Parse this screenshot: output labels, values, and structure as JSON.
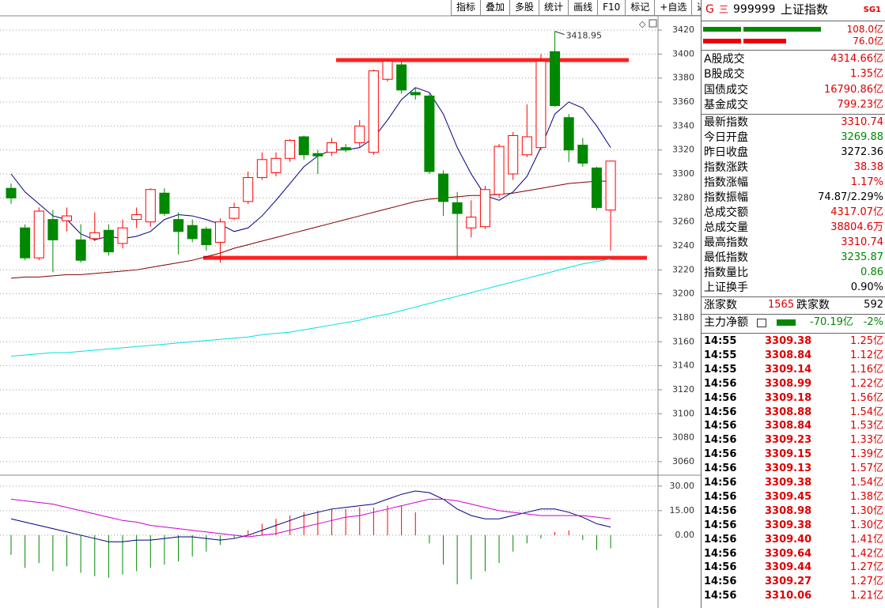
{
  "toolbar": [
    "指标",
    "叠加",
    "多股",
    "统计",
    "画线",
    "F10",
    "标记",
    "+自选",
    "返回"
  ],
  "chart_data": [
    {
      "type": "candlestick",
      "open": [
        3288,
        3255,
        3230,
        3262,
        3261,
        3245,
        3246,
        3253,
        3242,
        3262,
        3260,
        3284,
        3262,
        3257,
        3254,
        3243,
        3263,
        3277,
        3297,
        3301,
        3313,
        3331,
        3317,
        3318,
        3322,
        3326,
        3318,
        3379,
        3391,
        3368,
        3365,
        3300,
        3276,
        3255,
        3256,
        3283,
        3300,
        3316,
        3322,
        3402,
        3347,
        3324,
        3305,
        3269.88
      ],
      "high": [
        3292,
        3258,
        3272,
        3270,
        3272,
        3258,
        3268,
        3258,
        3262,
        3272,
        3288,
        3288,
        3268,
        3262,
        3256,
        3263,
        3276,
        3302,
        3318,
        3318,
        3329,
        3332,
        3320,
        3330,
        3325,
        3345,
        3387,
        3395,
        3394,
        3372,
        3367,
        3303,
        3285,
        3278,
        3290,
        3325,
        3335,
        3358,
        3400,
        3418.95,
        3350,
        3330,
        3306,
        3310.74
      ],
      "low": [
        3275,
        3228,
        3228,
        3218,
        3252,
        3226,
        3244,
        3232,
        3238,
        3255,
        3256,
        3265,
        3233,
        3243,
        3236,
        3226,
        3262,
        3275,
        3295,
        3298,
        3310,
        3312,
        3300,
        3315,
        3318,
        3322,
        3316,
        3377,
        3367,
        3362,
        3300,
        3265,
        3230,
        3247,
        3254,
        3280,
        3295,
        3314,
        3320,
        3356,
        3310,
        3306,
        3270,
        3235.87
      ],
      "close": [
        3280,
        3230,
        3269,
        3245,
        3265,
        3228,
        3251,
        3235,
        3255,
        3266,
        3287,
        3267,
        3252,
        3246,
        3241,
        3260,
        3272,
        3297,
        3312,
        3313,
        3328,
        3316,
        3315,
        3326,
        3320,
        3340,
        3386,
        3394,
        3370,
        3366,
        3302,
        3277,
        3267,
        3264,
        3287,
        3323,
        3332,
        3331,
        3394,
        3357,
        3320,
        3309,
        3272,
        3310.74
      ],
      "up_color": "#ff0000",
      "down_color": "#008800",
      "high_label": "3418.95",
      "lines": [
        {
          "color": "#000080",
          "values": [
            3300,
            3285,
            3275,
            3265,
            3262,
            3250,
            3245,
            3248,
            3246,
            3248,
            3252,
            3262,
            3266,
            3265,
            3262,
            3258,
            3252,
            3255,
            3265,
            3278,
            3292,
            3306,
            3315,
            3320,
            3320,
            3322,
            3330,
            3345,
            3362,
            3372,
            3368,
            3350,
            3322,
            3300,
            3282,
            3278,
            3285,
            3298,
            3322,
            3350,
            3360,
            3355,
            3340,
            3322
          ]
        },
        {
          "color": "#800000",
          "values": [
            3213,
            3214,
            3214,
            3215,
            3216,
            3216,
            3217,
            3218,
            3219,
            3220,
            3222,
            3224,
            3226,
            3228,
            3231,
            3234,
            3238,
            3241,
            3244,
            3247,
            3250,
            3253,
            3256,
            3259,
            3262,
            3265,
            3268,
            3271,
            3274,
            3277,
            3279,
            3280,
            3281,
            3282,
            3282,
            3283,
            3284,
            3286,
            3288,
            3290,
            3292,
            3293,
            3294,
            3294
          ]
        },
        {
          "color": "#00e0e0",
          "values": [
            3148,
            3149,
            3150,
            3151,
            3151,
            3152,
            3153,
            3154,
            3155,
            3156,
            3157,
            3158,
            3159,
            3160,
            3161,
            3162,
            3163,
            3164,
            3166,
            3167,
            3168,
            3170,
            3172,
            3174,
            3176,
            3178,
            3181,
            3183,
            3186,
            3189,
            3192,
            3195,
            3198,
            3201,
            3204,
            3207,
            3210,
            3213,
            3216,
            3219,
            3222,
            3225,
            3227,
            3229
          ]
        }
      ],
      "levels": [
        {
          "value": 3395,
          "color": "#ff2020"
        },
        {
          "value": 3230,
          "color": "#ff2020"
        }
      ],
      "ylim": [
        3049.4,
        3431.9
      ],
      "yticks": [
        3060,
        3080,
        3100,
        3120,
        3140,
        3160,
        3180,
        3200,
        3220,
        3240,
        3260,
        3280,
        3300,
        3320,
        3340,
        3360,
        3380,
        3400,
        3420
      ],
      "grid": true
    },
    {
      "type": "macd",
      "histogram": [
        -12,
        -20,
        -17,
        -22,
        -19,
        -23,
        -25,
        -26,
        -24,
        -22,
        -20,
        -18,
        -16,
        -13,
        -10,
        -6,
        -2,
        3,
        7,
        10,
        12,
        14,
        15,
        16,
        16,
        17,
        17,
        18,
        18,
        14,
        -5,
        -18,
        -30,
        -27,
        -22,
        -17,
        -10,
        -5,
        -2,
        2,
        3,
        -3,
        -9,
        -8
      ],
      "dif": [
        10,
        8,
        6,
        4,
        2,
        0,
        -2,
        -4,
        -4,
        -3,
        -3,
        -2,
        -1,
        -1,
        -2,
        -3,
        -2,
        0,
        3,
        6,
        9,
        12,
        14,
        16,
        17,
        18,
        19,
        22,
        25,
        27,
        26,
        22,
        16,
        12,
        10,
        10,
        12,
        14,
        16,
        16,
        14,
        11,
        7,
        5
      ],
      "dea": [
        22,
        21,
        20,
        19,
        17,
        15,
        13,
        11,
        9,
        8,
        6,
        5,
        4,
        3,
        2,
        1,
        0,
        -1,
        0,
        1,
        3,
        5,
        7,
        9,
        11,
        12,
        14,
        16,
        18,
        20,
        22,
        22,
        21,
        19,
        17,
        15,
        14,
        13,
        12,
        12,
        12,
        12,
        11,
        10
      ],
      "dif_color": "#000080",
      "dea_color": "#cc00cc",
      "up_color": "#ff0000",
      "down_color": "#008800",
      "ylim": [
        -44,
        36.2
      ],
      "yticks": [
        {
          "value": 0,
          "label": "0.00"
        },
        {
          "value": 15,
          "label": "15.00"
        },
        {
          "value": 30,
          "label": "30.00"
        }
      ],
      "grid": true
    }
  ],
  "quote_panel": {
    "header": {
      "mark": "G",
      "menu": "三",
      "code": "999999",
      "name": "上证指数",
      "badge": "SG1"
    },
    "volume_bars": [
      {
        "value": 108.0,
        "label": "108.0亿",
        "color": "#008800"
      },
      {
        "value": 76.0,
        "label": "76.0亿",
        "color": "#ee0000"
      }
    ],
    "turnover": [
      {
        "label": "A股成交",
        "value": "4314.66亿",
        "color": "#dd0000"
      },
      {
        "label": "B股成交",
        "value": "1.35亿",
        "color": "#dd0000"
      },
      {
        "label": "国债成交",
        "value": "16790.86亿",
        "color": "#dd0000"
      },
      {
        "label": "基金成交",
        "value": "799.23亿",
        "color": "#dd0000"
      }
    ],
    "stats": [
      {
        "label": "最新指数",
        "value": "3310.74",
        "color": "#dd0000"
      },
      {
        "label": "今日开盘",
        "value": "3269.88",
        "color": "#008800"
      },
      {
        "label": "昨日收盘",
        "value": "3272.36",
        "color": "#000000"
      },
      {
        "label": "指数涨跌",
        "value": "38.38",
        "color": "#dd0000"
      },
      {
        "label": "指数涨幅",
        "value": "1.17%",
        "color": "#dd0000"
      },
      {
        "label": "指数振幅",
        "value": "74.87/2.29%",
        "color": "#000000"
      },
      {
        "label": "总成交额",
        "value": "4317.07亿",
        "color": "#dd0000"
      },
      {
        "label": "总成交量",
        "value": "38804.6万",
        "color": "#dd0000"
      },
      {
        "label": "最高指数",
        "value": "3310.74",
        "color": "#dd0000"
      },
      {
        "label": "最低指数",
        "value": "3235.87",
        "color": "#008800"
      },
      {
        "label": "指数量比",
        "value": "0.86",
        "color": "#008800"
      },
      {
        "label": "上证换手",
        "value": "0.90%",
        "color": "#000000"
      }
    ],
    "breadth": {
      "up_label": "涨家数",
      "up": "1565",
      "down_label": "跌家数",
      "down": "592"
    },
    "main_flow": {
      "label": "主力净额",
      "value": "-70.19亿",
      "pct": "-2%",
      "color": "#008800"
    },
    "ticks": [
      [
        "14:55",
        "3309.38",
        "1.25亿"
      ],
      [
        "14:55",
        "3308.84",
        "1.12亿"
      ],
      [
        "14:55",
        "3309.14",
        "1.16亿"
      ],
      [
        "14:56",
        "3308.99",
        "1.22亿"
      ],
      [
        "14:56",
        "3309.18",
        "1.56亿"
      ],
      [
        "14:56",
        "3308.88",
        "1.54亿"
      ],
      [
        "14:56",
        "3308.84",
        "1.53亿"
      ],
      [
        "14:56",
        "3309.23",
        "1.33亿"
      ],
      [
        "14:56",
        "3309.15",
        "1.39亿"
      ],
      [
        "14:56",
        "3309.13",
        "1.57亿"
      ],
      [
        "14:56",
        "3309.38",
        "1.54亿"
      ],
      [
        "14:56",
        "3309.45",
        "1.38亿"
      ],
      [
        "14:56",
        "3308.98",
        "1.30亿"
      ],
      [
        "14:56",
        "3309.38",
        "1.30亿"
      ],
      [
        "14:56",
        "3309.40",
        "1.41亿"
      ],
      [
        "14:56",
        "3309.64",
        "1.42亿"
      ],
      [
        "14:56",
        "3309.44",
        "1.27亿"
      ],
      [
        "14:56",
        "3309.27",
        "1.27亿"
      ],
      [
        "14:56",
        "3310.06",
        "1.21亿"
      ]
    ]
  }
}
